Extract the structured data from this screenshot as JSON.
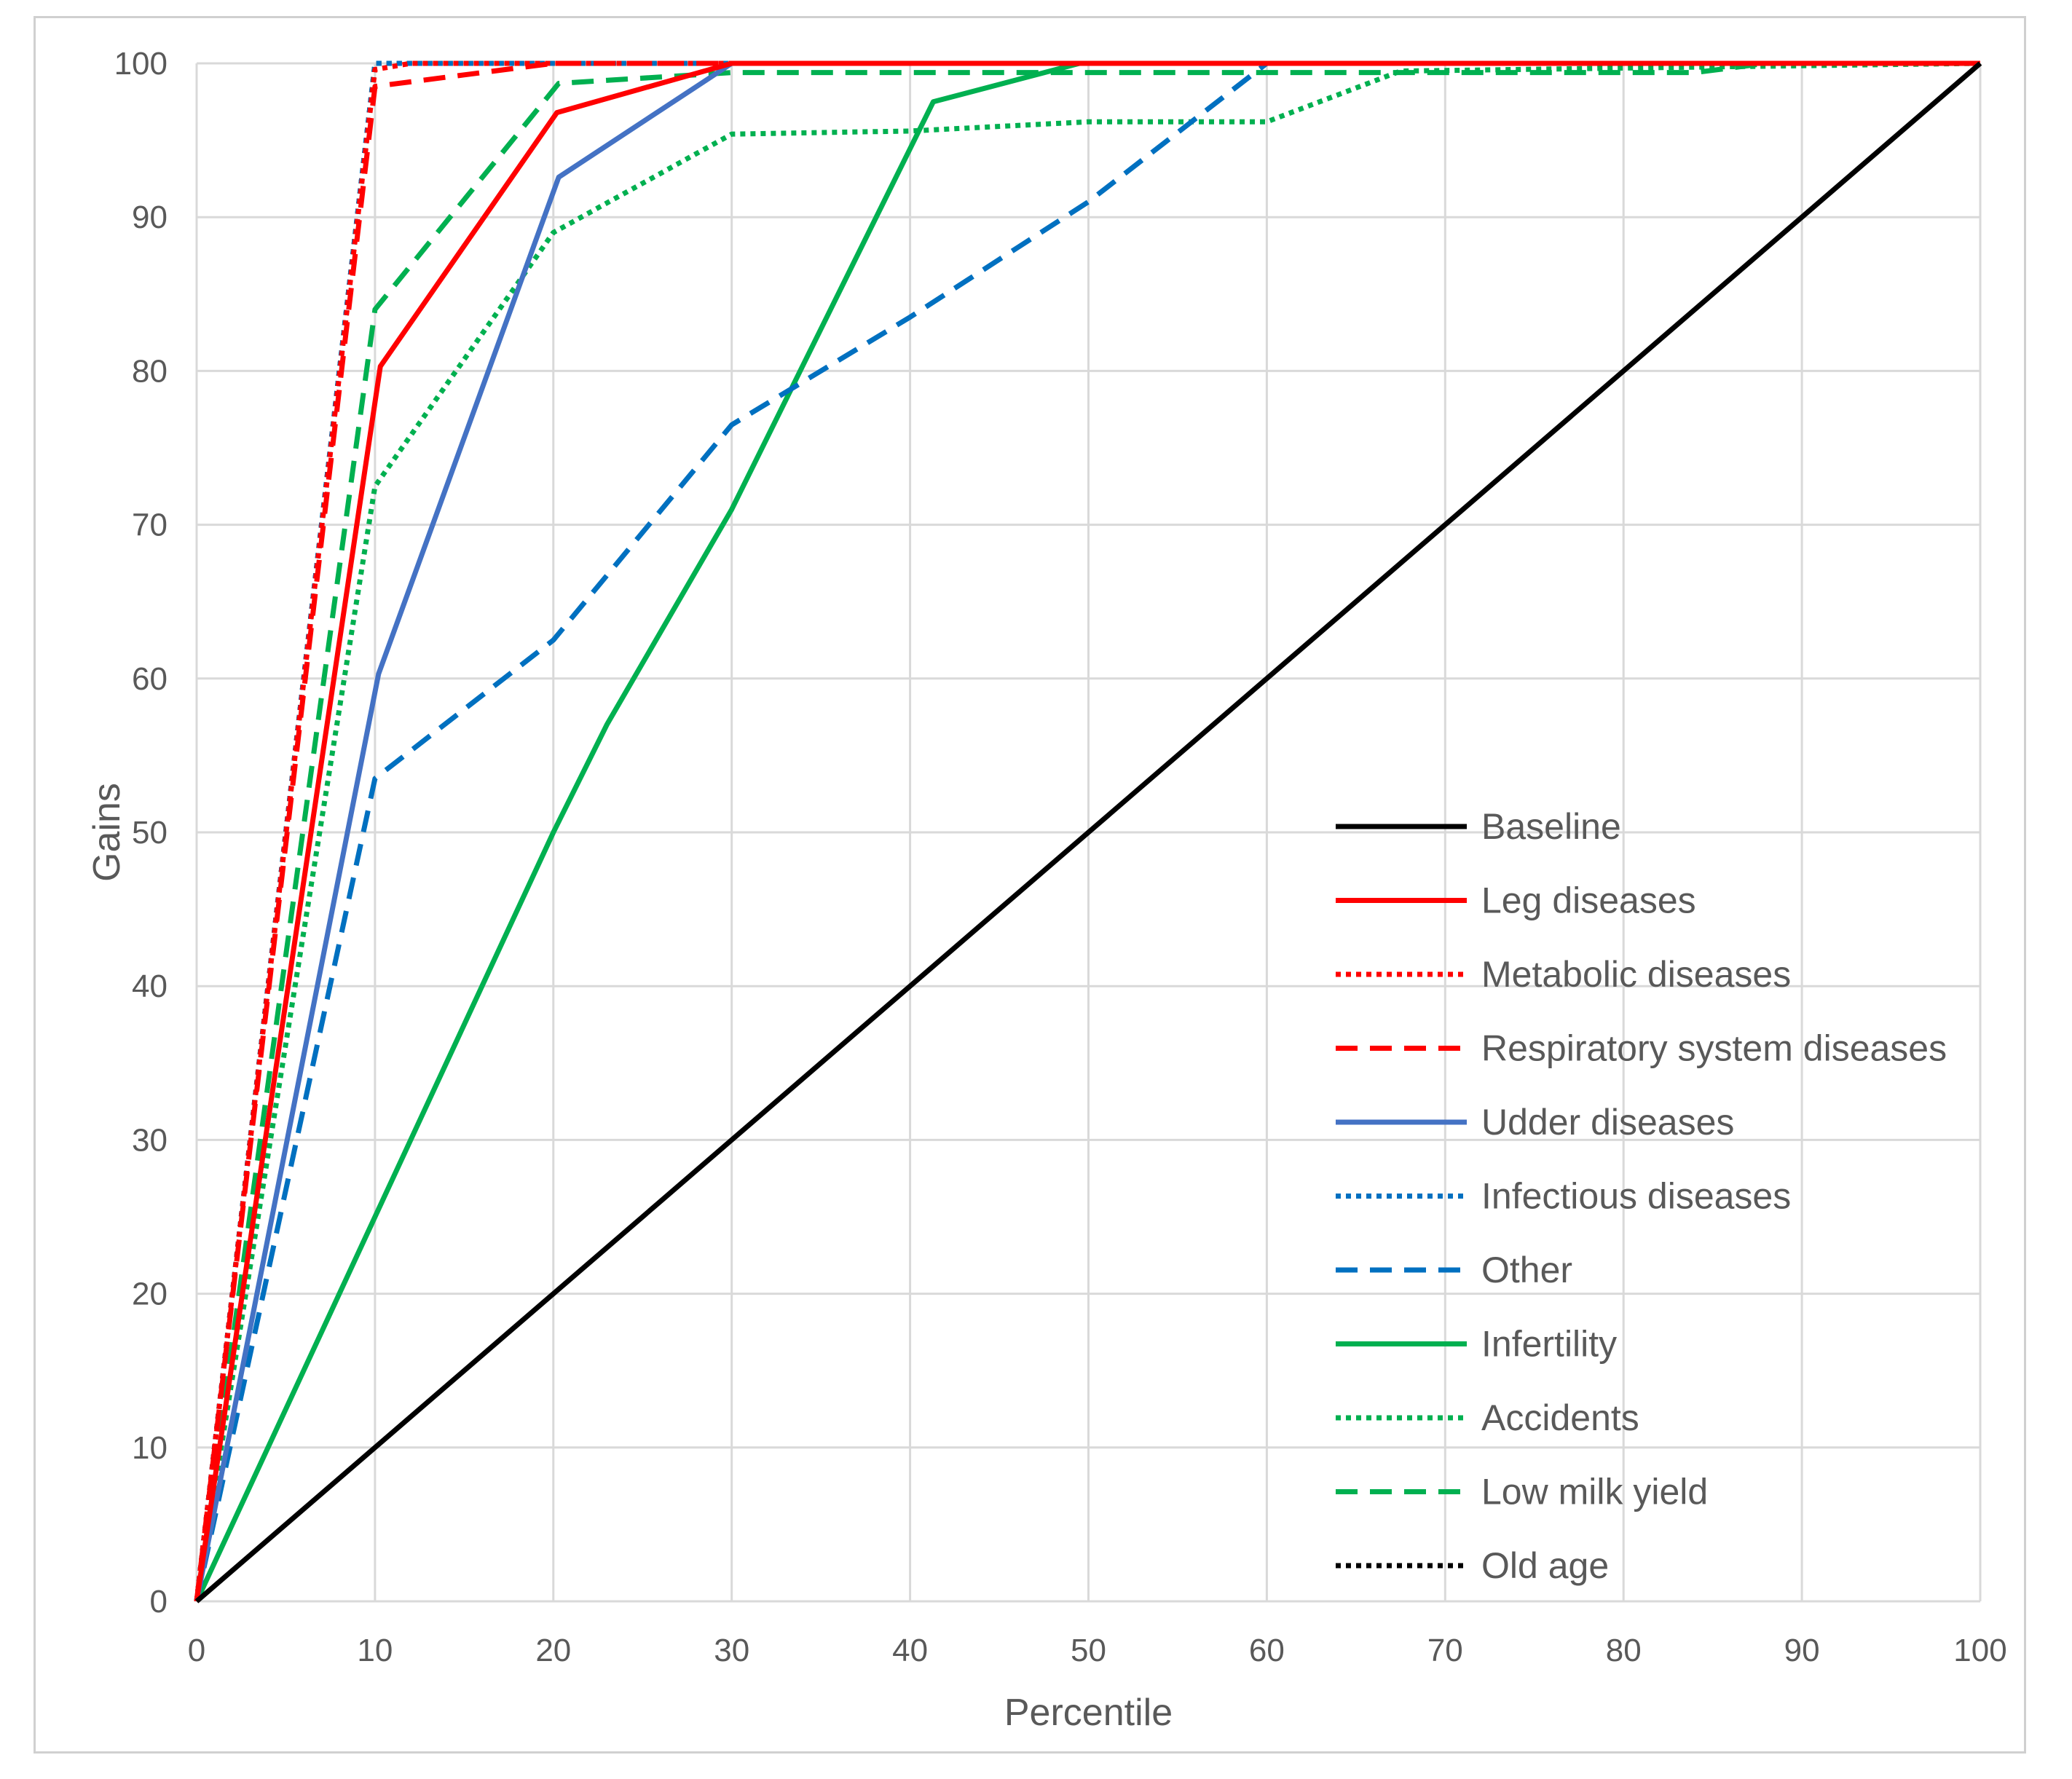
{
  "chart_data": {
    "type": "line",
    "title": "",
    "xlabel": "Percentile",
    "ylabel": "Gains",
    "xlim": [
      0,
      100
    ],
    "ylim": [
      0,
      100
    ],
    "x_ticks": [
      0,
      10,
      20,
      30,
      40,
      50,
      60,
      70,
      80,
      90,
      100
    ],
    "y_ticks": [
      0,
      10,
      20,
      30,
      40,
      50,
      60,
      70,
      80,
      90,
      100
    ],
    "grid": true,
    "legend_position": "right",
    "series": [
      {
        "name": "Baseline",
        "color": "#000000",
        "style": "solid",
        "x": [
          0,
          100
        ],
        "y": [
          0,
          100
        ]
      },
      {
        "name": "Leg diseases",
        "color": "#ff0000",
        "style": "solid",
        "x": [
          0,
          10.3,
          20.2,
          30,
          100
        ],
        "y": [
          0,
          80.3,
          96.8,
          100,
          100
        ]
      },
      {
        "name": "Metabolic diseases",
        "color": "#ff0000",
        "style": "dotted",
        "x": [
          0,
          10,
          12,
          100
        ],
        "y": [
          0,
          99.6,
          100,
          100
        ]
      },
      {
        "name": "Respiratory system diseases",
        "color": "#ff0000",
        "style": "dashed",
        "x": [
          0,
          10,
          20,
          100
        ],
        "y": [
          0,
          98.5,
          100,
          100
        ]
      },
      {
        "name": "Udder diseases",
        "color": "#4472c4",
        "style": "solid",
        "x": [
          0,
          10.2,
          20.3,
          30,
          100
        ],
        "y": [
          0,
          60.3,
          92.6,
          100,
          100
        ]
      },
      {
        "name": "Infectious diseases",
        "color": "#0070c0",
        "style": "dotted",
        "x": [
          0,
          10,
          100
        ],
        "y": [
          0,
          100,
          100
        ]
      },
      {
        "name": "Other",
        "color": "#0070c0",
        "style": "dashed",
        "x": [
          0,
          10,
          20,
          30,
          40,
          50,
          60,
          100
        ],
        "y": [
          0,
          53.5,
          62.5,
          76.5,
          83.5,
          91,
          100,
          100
        ]
      },
      {
        "name": "Infertility",
        "color": "#00b050",
        "style": "solid",
        "x": [
          0,
          10,
          20,
          23,
          30,
          41.3,
          49.5,
          100
        ],
        "y": [
          0,
          25,
          50,
          57,
          71,
          97.5,
          100,
          100
        ]
      },
      {
        "name": "Accidents",
        "color": "#00b050",
        "style": "dotted",
        "x": [
          0,
          10,
          20,
          30,
          40,
          50,
          60,
          67.5,
          100
        ],
        "y": [
          0,
          72.5,
          89,
          95.4,
          95.6,
          96.2,
          96.2,
          99.5,
          100
        ]
      },
      {
        "name": "Low milk yield",
        "color": "#00b050",
        "style": "dashed",
        "x": [
          0,
          10,
          20.3,
          30,
          84,
          88,
          100
        ],
        "y": [
          0,
          84,
          98.7,
          99.4,
          99.4,
          100,
          100
        ]
      },
      {
        "name": "Old age",
        "color": "#000000",
        "style": "dotted",
        "x": [
          0,
          10,
          100
        ],
        "y": [
          0,
          100,
          100
        ]
      }
    ]
  }
}
